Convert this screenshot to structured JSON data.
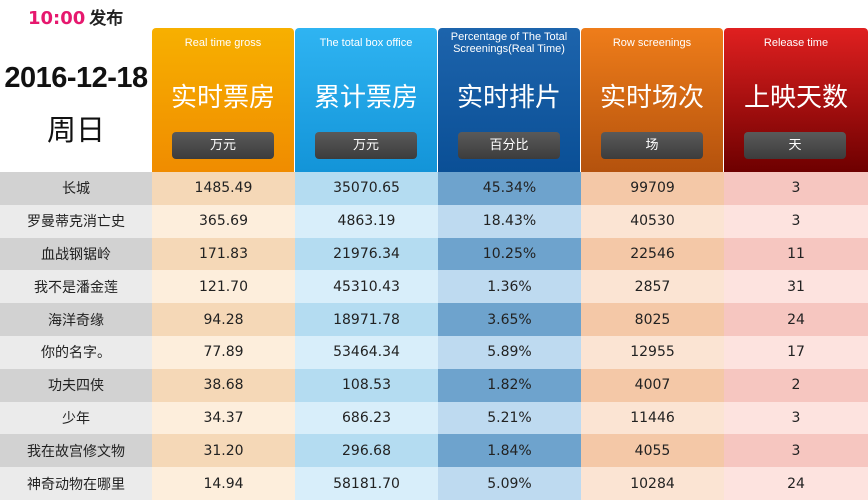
{
  "publish": {
    "time": "10:00",
    "label": "发布"
  },
  "date": {
    "date": "2016-12-18",
    "weekday": "周日"
  },
  "columns": [
    {
      "en": "Real time gross",
      "cn": "实时票房",
      "unit": "万元"
    },
    {
      "en": "The total box office",
      "cn": "累计票房",
      "unit": "万元"
    },
    {
      "en": "Percentage of The Total Screenings(Real Time)",
      "cn": "实时排片",
      "unit": "百分比"
    },
    {
      "en": "Row screenings",
      "cn": "实时场次",
      "unit": "场"
    },
    {
      "en": "Release time",
      "cn": "上映天数",
      "unit": "天"
    }
  ],
  "rows": [
    {
      "name": "长城",
      "gross": "1485.49",
      "total": "35070.65",
      "share": "45.34%",
      "screenings": "99709",
      "days": "3"
    },
    {
      "name": "罗曼蒂克消亡史",
      "gross": "365.69",
      "total": "4863.19",
      "share": "18.43%",
      "screenings": "40530",
      "days": "3"
    },
    {
      "name": "血战钢锯岭",
      "gross": "171.83",
      "total": "21976.34",
      "share": "10.25%",
      "screenings": "22546",
      "days": "11"
    },
    {
      "name": "我不是潘金莲",
      "gross": "121.70",
      "total": "45310.43",
      "share": "1.36%",
      "screenings": "2857",
      "days": "31"
    },
    {
      "name": "海洋奇缘",
      "gross": "94.28",
      "total": "18971.78",
      "share": "3.65%",
      "screenings": "8025",
      "days": "24"
    },
    {
      "name": "你的名字。",
      "gross": "77.89",
      "total": "53464.34",
      "share": "5.89%",
      "screenings": "12955",
      "days": "17"
    },
    {
      "name": "功夫四侠",
      "gross": "38.68",
      "total": "108.53",
      "share": "1.82%",
      "screenings": "4007",
      "days": "2"
    },
    {
      "name": "少年",
      "gross": "34.37",
      "total": "686.23",
      "share": "5.21%",
      "screenings": "11446",
      "days": "3"
    },
    {
      "name": "我在故宫修文物",
      "gross": "31.20",
      "total": "296.68",
      "share": "1.84%",
      "screenings": "4055",
      "days": "3"
    },
    {
      "name": "神奇动物在哪里",
      "gross": "14.94",
      "total": "58181.70",
      "share": "5.09%",
      "screenings": "10284",
      "days": "24"
    }
  ]
}
